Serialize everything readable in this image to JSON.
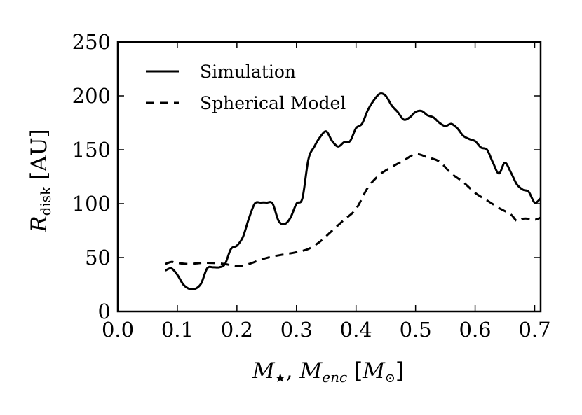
{
  "chart_data": {
    "type": "line",
    "title": "",
    "xlabel_parts": {
      "m1": "M",
      "m1_sub": "★",
      "sep": ", ",
      "m2": "M",
      "m2_sub": "enc",
      "unit_open": " [",
      "unit_m": "M",
      "unit_sub": "⊙",
      "unit_close": "]"
    },
    "ylabel_parts": {
      "r": "R",
      "r_sub": "disk",
      "unit": " [AU]"
    },
    "xlim": [
      0.0,
      0.71
    ],
    "ylim": [
      0,
      250
    ],
    "xticks": [
      0.0,
      0.1,
      0.2,
      0.3,
      0.4,
      0.5,
      0.6,
      0.7
    ],
    "xtick_labels": [
      "0.0",
      "0.1",
      "0.2",
      "0.3",
      "0.4",
      "0.5",
      "0.6",
      "0.7"
    ],
    "yticks": [
      0,
      50,
      100,
      150,
      200,
      250
    ],
    "ytick_labels": [
      "0",
      "50",
      "100",
      "150",
      "200",
      "250"
    ],
    "legend_position": "top-left",
    "series": [
      {
        "name": "Simulation",
        "style": "solid",
        "x": [
          0.08,
          0.09,
          0.1,
          0.11,
          0.12,
          0.13,
          0.14,
          0.15,
          0.16,
          0.17,
          0.18,
          0.19,
          0.2,
          0.21,
          0.22,
          0.23,
          0.24,
          0.25,
          0.26,
          0.27,
          0.28,
          0.29,
          0.3,
          0.31,
          0.32,
          0.33,
          0.34,
          0.35,
          0.36,
          0.37,
          0.38,
          0.39,
          0.4,
          0.41,
          0.42,
          0.43,
          0.44,
          0.45,
          0.46,
          0.47,
          0.48,
          0.49,
          0.5,
          0.51,
          0.52,
          0.53,
          0.54,
          0.55,
          0.56,
          0.57,
          0.58,
          0.59,
          0.6,
          0.61,
          0.62,
          0.63,
          0.64,
          0.65,
          0.66,
          0.67,
          0.68,
          0.69,
          0.7,
          0.71
        ],
        "y": [
          38,
          40,
          34,
          25,
          21,
          21,
          26,
          40,
          41,
          41,
          44,
          58,
          61,
          69,
          86,
          100,
          101,
          101,
          100,
          84,
          81,
          87,
          100,
          105,
          141,
          153,
          162,
          167,
          158,
          153,
          157,
          158,
          170,
          174,
          187,
          196,
          202,
          200,
          191,
          185,
          178,
          180,
          185,
          186,
          182,
          180,
          175,
          172,
          174,
          170,
          163,
          160,
          158,
          152,
          150,
          138,
          128,
          138,
          129,
          118,
          113,
          111,
          101,
          105
        ]
      },
      {
        "name": "Spherical Model",
        "style": "dashed",
        "x": [
          0.08,
          0.09,
          0.1,
          0.12,
          0.14,
          0.16,
          0.18,
          0.2,
          0.22,
          0.24,
          0.26,
          0.28,
          0.3,
          0.32,
          0.34,
          0.36,
          0.38,
          0.4,
          0.42,
          0.44,
          0.46,
          0.48,
          0.5,
          0.52,
          0.54,
          0.56,
          0.58,
          0.6,
          0.62,
          0.64,
          0.66,
          0.67,
          0.68,
          0.69,
          0.7,
          0.71
        ],
        "y": [
          44,
          46,
          45,
          44,
          45,
          45,
          44,
          42,
          44,
          48,
          51,
          53,
          55,
          58,
          65,
          75,
          85,
          95,
          115,
          127,
          134,
          140,
          146,
          143,
          139,
          128,
          120,
          110,
          103,
          96,
          90,
          84,
          86,
          86,
          85,
          87
        ]
      }
    ]
  }
}
